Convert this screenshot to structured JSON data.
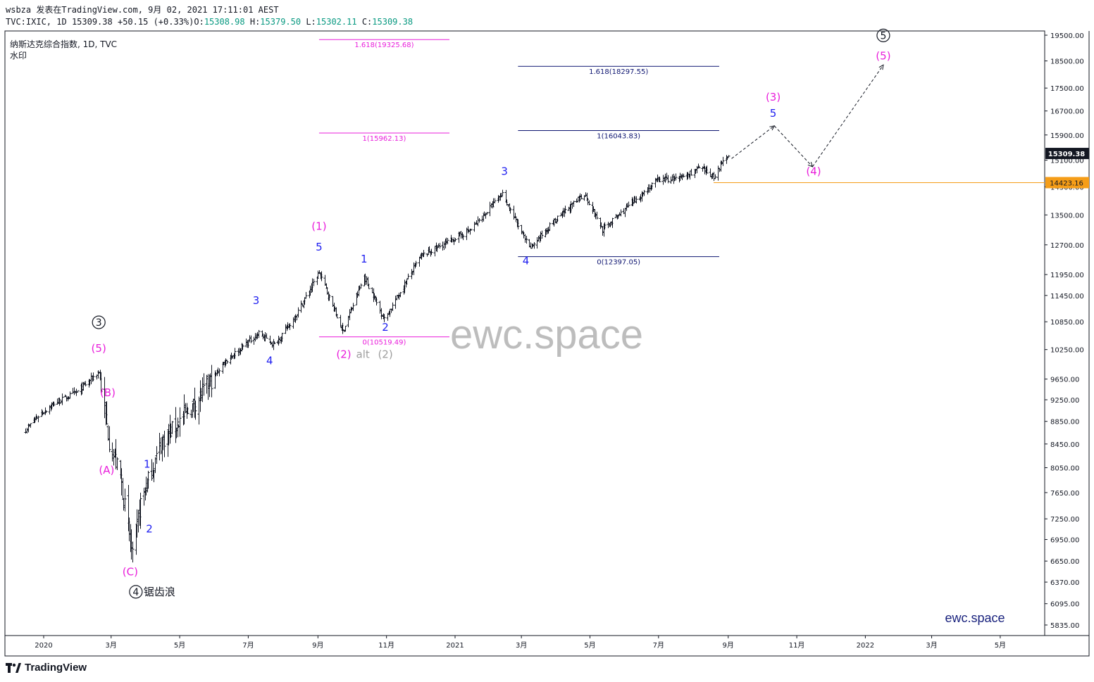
{
  "header": {
    "publish_line": "wsbza 发表在TradingView.com, 9月 02, 2021 17:11:01 AEST",
    "symbol": "TVC:IXIC, 1D",
    "last": "15309.38",
    "change": "+50.15",
    "change_pct": "(+0.33%)",
    "o_label": "O:",
    "o": "15308.98",
    "h_label": "H:",
    "h": "15379.50",
    "l_label": "L:",
    "l": "15302.11",
    "c_label": "C:",
    "c": "15309.38"
  },
  "legend": {
    "title": "纳斯达克综合指数, 1D, TVC",
    "watermark_label": "水印"
  },
  "branding": {
    "watermark": "ewc.space",
    "small_brand": "ewc.space",
    "footer": "TradingView"
  },
  "colors": {
    "magenta": "#e91edb",
    "blue": "#1e1ef0",
    "navy": "#0d1470",
    "gray": "#9e9e9e",
    "orange": "#f59d18",
    "up_candle": "#131722"
  },
  "chart_data": {
    "type": "ohlc",
    "scale": "log",
    "y_ticks": [
      "19500.00",
      "18500.00",
      "17500.00",
      "16700.00",
      "15900.00",
      "15100.00",
      "14300.00",
      "13500.00",
      "12700.00",
      "11950.00",
      "11450.00",
      "10850.00",
      "10250.00",
      "9650.00",
      "9250.00",
      "8850.00",
      "8450.00",
      "8050.00",
      "7650.00",
      "7250.00",
      "6950.00",
      "6650.00",
      "6370.00",
      "6095.00",
      "5835.00"
    ],
    "x_ticks": [
      "2020",
      "3月",
      "5月",
      "7月",
      "9月",
      "11月",
      "2021",
      "3月",
      "5月",
      "7月",
      "9月",
      "11月",
      "2022",
      "3月",
      "5月"
    ],
    "price_labels": {
      "last": "15309.38",
      "orange_level": "14423.16"
    },
    "price_path": [
      [
        "2019-12-16",
        8700
      ],
      [
        "2019-12-27",
        8950
      ],
      [
        "2020-01-10",
        9180
      ],
      [
        "2020-01-31",
        9400
      ],
      [
        "2020-02-19",
        9800
      ],
      [
        "2020-02-28",
        8500
      ],
      [
        "2020-03-09",
        7900
      ],
      [
        "2020-03-20",
        6700
      ],
      [
        "2020-03-27",
        7500
      ],
      [
        "2020-04-15",
        8500
      ],
      [
        "2020-05-15",
        9200
      ],
      [
        "2020-06-10",
        10000
      ],
      [
        "2020-07-10",
        10600
      ],
      [
        "2020-07-24",
        10350
      ],
      [
        "2020-08-10",
        10900
      ],
      [
        "2020-09-02",
        12000
      ],
      [
        "2020-09-23",
        10650
      ],
      [
        "2020-10-12",
        11900
      ],
      [
        "2020-10-30",
        10900
      ],
      [
        "2020-12-01",
        12400
      ],
      [
        "2021-01-15",
        13100
      ],
      [
        "2021-02-12",
        14100
      ],
      [
        "2021-03-08",
        12600
      ],
      [
        "2021-03-26",
        13200
      ],
      [
        "2021-04-26",
        14100
      ],
      [
        "2021-05-12",
        13100
      ],
      [
        "2021-06-30",
        14500
      ],
      [
        "2021-07-20",
        14550
      ],
      [
        "2021-08-06",
        14850
      ],
      [
        "2021-08-19",
        14600
      ],
      [
        "2021-09-01",
        15309
      ]
    ],
    "wave_labels": [
      {
        "text": "3",
        "style": "circle",
        "color": "black",
        "date": "2020-02-19",
        "price": 10760
      },
      {
        "text": "(5)",
        "color": "magenta",
        "date": "2020-02-19",
        "price": 10200
      },
      {
        "text": "(B)",
        "color": "magenta",
        "date": "2020-02-27",
        "price": 9320
      },
      {
        "text": "(A)",
        "color": "magenta",
        "date": "2020-02-26",
        "price": 7950
      },
      {
        "text": "1",
        "color": "blue",
        "date": "2020-04-02",
        "price": 8050
      },
      {
        "text": "2",
        "color": "blue",
        "date": "2020-04-04",
        "price": 7050
      },
      {
        "text": "(C)",
        "color": "magenta",
        "date": "2020-03-18",
        "price": 6460
      },
      {
        "text": "4",
        "style": "circle",
        "color": "black",
        "date": "2020-03-23",
        "price": 6200
      },
      {
        "text": "锯齿浪",
        "color": "black",
        "date": "2020-04-13",
        "price": 6200
      },
      {
        "text": "3",
        "color": "blue",
        "date": "2020-07-08",
        "price": 11250
      },
      {
        "text": "4",
        "color": "blue",
        "date": "2020-07-20",
        "price": 9950
      },
      {
        "text": "(1)",
        "color": "magenta",
        "date": "2020-09-02",
        "price": 13100
      },
      {
        "text": "5",
        "color": "blue",
        "date": "2020-09-02",
        "price": 12550
      },
      {
        "text": "1",
        "color": "blue",
        "date": "2020-10-12",
        "price": 12250
      },
      {
        "text": "2",
        "color": "blue",
        "date": "2020-10-31",
        "price": 10650
      },
      {
        "text": "(2)",
        "color": "magenta",
        "date": "2020-09-24",
        "price": 10080
      },
      {
        "text": "alt",
        "color": "gray",
        "date": "2020-10-11",
        "price": 10080
      },
      {
        "text": "(2)",
        "color": "gray",
        "date": "2020-10-31",
        "price": 10080
      },
      {
        "text": "3",
        "color": "blue",
        "date": "2021-02-14",
        "price": 14650
      },
      {
        "text": "4",
        "color": "blue",
        "date": "2021-03-05",
        "price": 12200
      },
      {
        "text": "(3)",
        "color": "magenta",
        "date": "2021-10-11",
        "price": 17060
      },
      {
        "text": "5",
        "color": "blue",
        "date": "2021-10-11",
        "price": 16500
      },
      {
        "text": "(4)",
        "color": "magenta",
        "date": "2021-11-16",
        "price": 14650
      },
      {
        "text": "5",
        "style": "circle",
        "color": "black",
        "date": "2022-01-17",
        "price": 19350
      },
      {
        "text": "(5)",
        "color": "magenta",
        "date": "2022-01-17",
        "price": 18550
      }
    ],
    "fib_levels": [
      {
        "label": "1.618(19325.68)",
        "price": 19325.68,
        "color": "magenta",
        "from": "2020-09-02",
        "to": "2020-12-27"
      },
      {
        "label": "1(15962.13)",
        "price": 15962.13,
        "color": "magenta",
        "from": "2020-09-02",
        "to": "2020-12-27"
      },
      {
        "label": "0(10519.49)",
        "price": 10519.49,
        "color": "magenta",
        "from": "2020-09-02",
        "to": "2020-12-27"
      },
      {
        "label": "1.618(18297.55)",
        "price": 18297.55,
        "color": "navy",
        "from": "2021-02-26",
        "to": "2021-08-24"
      },
      {
        "label": "1(16043.83)",
        "price": 16043.83,
        "color": "navy",
        "from": "2021-02-26",
        "to": "2021-08-24"
      },
      {
        "label": "0(12397.05)",
        "price": 12397.05,
        "color": "navy",
        "from": "2021-02-26",
        "to": "2021-08-24"
      }
    ],
    "horizontal_level": {
      "price": 14423.16,
      "from": "2021-08-19",
      "color": "orange"
    },
    "projection": [
      [
        "2021-09-04",
        15150
      ],
      [
        "2021-10-12",
        16200
      ],
      [
        "2021-11-15",
        14900
      ],
      [
        "2022-01-17",
        18350
      ]
    ]
  }
}
